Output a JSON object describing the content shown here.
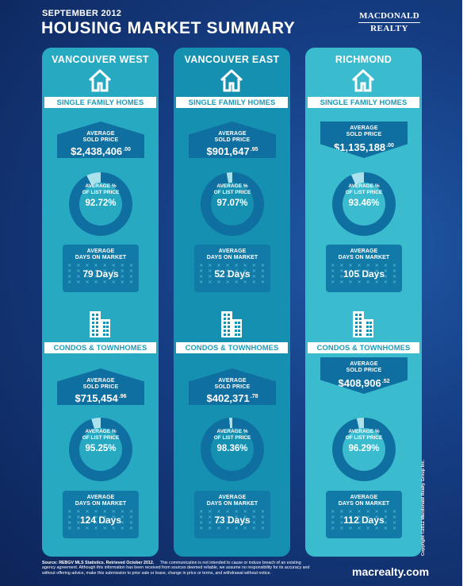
{
  "header": {
    "eyebrow": "SEPTEMBER 2012",
    "title": "HOUSING MARKET SUMMARY",
    "logo_top": "MACDONALD",
    "logo_bottom": "REALTY"
  },
  "columns": [
    {
      "name": "VANCOUVER WEST",
      "color": "#28a9c2",
      "single_family": {
        "band": "SINGLE FAMILY HOMES",
        "price_label_1": "AVERAGE",
        "price_label_2": "SOLD PRICE",
        "price_main": "$2,438,406",
        "price_cents": ".00",
        "list_label_1": "AVERAGE %",
        "list_label_2": "OF LIST PRICE",
        "list_value": "92.72%",
        "list_fraction": 0.9272,
        "days_label_1": "AVERAGE",
        "days_label_2": "DAYS ON MARKET",
        "days_value": "79 Days"
      },
      "condos": {
        "band": "CONDOS & TOWNHOMES",
        "price_label_1": "AVERAGE",
        "price_label_2": "SOLD PRICE",
        "price_main": "$715,454",
        "price_cents": ".96",
        "list_label_1": "AVERAGE %",
        "list_label_2": "OF LIST PRICE",
        "list_value": "95.25%",
        "list_fraction": 0.9525,
        "days_label_1": "AVERAGE",
        "days_label_2": "DAYS ON MARKET",
        "days_value": "124 Days"
      }
    },
    {
      "name": "VANCOUVER EAST",
      "color": "#1590b0",
      "single_family": {
        "band": "SINGLE FAMILY HOMES",
        "price_label_1": "AVERAGE",
        "price_label_2": "SOLD PRICE",
        "price_main": "$901,647",
        "price_cents": ".95",
        "list_label_1": "AVERAGE %",
        "list_label_2": "OF LIST PRICE",
        "list_value": "97.07%",
        "list_fraction": 0.9707,
        "days_label_1": "AVERAGE",
        "days_label_2": "DAYS ON MARKET",
        "days_value": "52 Days"
      },
      "condos": {
        "band": "CONDOS & TOWNHOMES",
        "price_label_1": "AVERAGE",
        "price_label_2": "SOLD PRICE",
        "price_main": "$402,371",
        "price_cents": ".78",
        "list_label_1": "AVERAGE %",
        "list_label_2": "OF LIST PRICE",
        "list_value": "98.36%",
        "list_fraction": 0.9836,
        "days_label_1": "AVERAGE",
        "days_label_2": "DAYS ON MARKET",
        "days_value": "73 Days"
      }
    },
    {
      "name": "RICHMOND",
      "color": "#3bbbce",
      "single_family": {
        "band": "SINGLE FAMILY HOMES",
        "price_label_1": "AVERAGE",
        "price_label_2": "SOLD PRICE",
        "price_main": "$1,135,188",
        "price_cents": ".00",
        "list_label_1": "AVERAGE %",
        "list_label_2": "OF LIST PRICE",
        "list_value": "93.46%",
        "list_fraction": 0.9346,
        "days_label_1": "AVERAGE",
        "days_label_2": "DAYS ON MARKET",
        "days_value": "105 Days"
      },
      "condos": {
        "band": "CONDOS & TOWNHOMES",
        "price_label_1": "AVERAGE",
        "price_label_2": "SOLD PRICE",
        "price_main": "$408,906",
        "price_cents": ".52",
        "list_label_1": "AVERAGE %",
        "list_label_2": "OF LIST PRICE",
        "list_value": "96.29%",
        "list_fraction": 0.9629,
        "days_label_1": "AVERAGE",
        "days_label_2": "DAYS ON MARKET",
        "days_value": "112 Days"
      }
    }
  ],
  "footer": {
    "source_bold": "Source: REBGV MLS Statistics. Retrieved October 2012.",
    "disclaimer": "This communication is not intended to cause or induce breach of an existing agency agreement. Although this information has been received from sources deemed reliable, we assume no responsibility for its accuracy and without offering advice, make this submission to prior sale or lease, change in price or terms, and withdrawal without notice.",
    "url": "macrealty.com",
    "copyright": "Copyright ©2012 Macdonald Realty Group Inc."
  },
  "colors": {
    "background": "#163f86",
    "price_box": "#0f6fa0",
    "ring_track": "#a9e2ec",
    "ring_fill": "#0f6fa0",
    "band_text": "#1a9bb8"
  },
  "icons": {
    "single_family": "house-icon",
    "condos": "building-icon"
  }
}
